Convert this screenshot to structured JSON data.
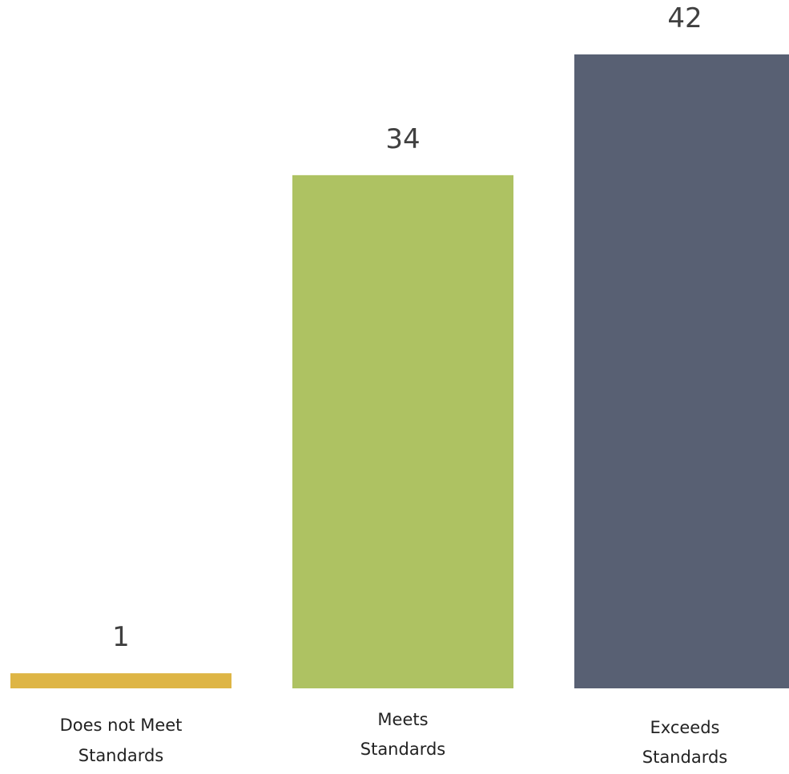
{
  "chart_data": {
    "type": "bar",
    "categories": [
      [
        "Does not Meet",
        "Standards"
      ],
      [
        "Meets",
        "Standards"
      ],
      [
        "Exceeds",
        "Standards"
      ]
    ],
    "values": [
      1,
      34,
      42
    ],
    "colors": [
      "#deb545",
      "#aec262",
      "#586073"
    ],
    "data_labels": [
      "1",
      "34",
      "42"
    ],
    "ylim": [
      0,
      42
    ],
    "grid": false,
    "legend": "none"
  }
}
